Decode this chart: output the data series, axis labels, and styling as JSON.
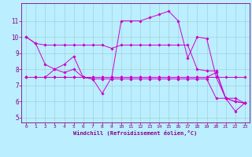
{
  "bg_color": "#bbeeff",
  "line_color": "#cc00cc",
  "grid_color": "#99cccc",
  "xlabel": "Windchill (Refroidissement éolien,°C)",
  "xlabel_color": "#880088",
  "tick_color": "#880088",
  "ylim": [
    4.7,
    12.1
  ],
  "xlim": [
    -0.5,
    23.5
  ],
  "yticks": [
    5,
    6,
    7,
    8,
    9,
    10,
    11
  ],
  "xticks": [
    0,
    1,
    2,
    3,
    4,
    5,
    6,
    7,
    8,
    9,
    10,
    11,
    12,
    13,
    14,
    15,
    16,
    17,
    18,
    19,
    20,
    21,
    22,
    23
  ],
  "series": [
    [
      10.0,
      9.6,
      9.5,
      9.5,
      9.5,
      9.5,
      9.5,
      9.5,
      9.5,
      9.3,
      9.5,
      9.5,
      9.5,
      9.5,
      9.5,
      9.5,
      9.5,
      9.5,
      8.0,
      7.9,
      7.9,
      6.2,
      6.2,
      5.9
    ],
    [
      10.0,
      9.6,
      8.3,
      8.0,
      8.3,
      8.8,
      7.5,
      7.4,
      6.5,
      7.5,
      11.0,
      11.0,
      11.0,
      11.2,
      11.4,
      11.6,
      11.0,
      8.7,
      10.0,
      9.9,
      7.5,
      6.2,
      5.4,
      5.9
    ],
    [
      7.5,
      7.5,
      7.5,
      8.0,
      7.8,
      8.0,
      7.5,
      7.5,
      7.5,
      7.5,
      7.5,
      7.5,
      7.5,
      7.5,
      7.5,
      7.5,
      7.5,
      7.5,
      7.5,
      7.5,
      7.5,
      7.5,
      7.5,
      7.5
    ],
    [
      7.5,
      7.5,
      7.5,
      7.5,
      7.5,
      7.5,
      7.5,
      7.5,
      7.5,
      7.5,
      7.5,
      7.5,
      7.5,
      7.5,
      7.5,
      7.5,
      7.5,
      7.5,
      7.5,
      7.5,
      7.8,
      6.2,
      6.0,
      5.9
    ],
    [
      7.5,
      7.5,
      7.5,
      7.5,
      7.5,
      7.5,
      7.5,
      7.4,
      7.4,
      7.4,
      7.4,
      7.4,
      7.4,
      7.4,
      7.4,
      7.4,
      7.4,
      7.4,
      7.4,
      7.4,
      6.2,
      6.2,
      6.0,
      5.9
    ]
  ],
  "figsize": [
    3.2,
    2.0
  ],
  "dpi": 100
}
